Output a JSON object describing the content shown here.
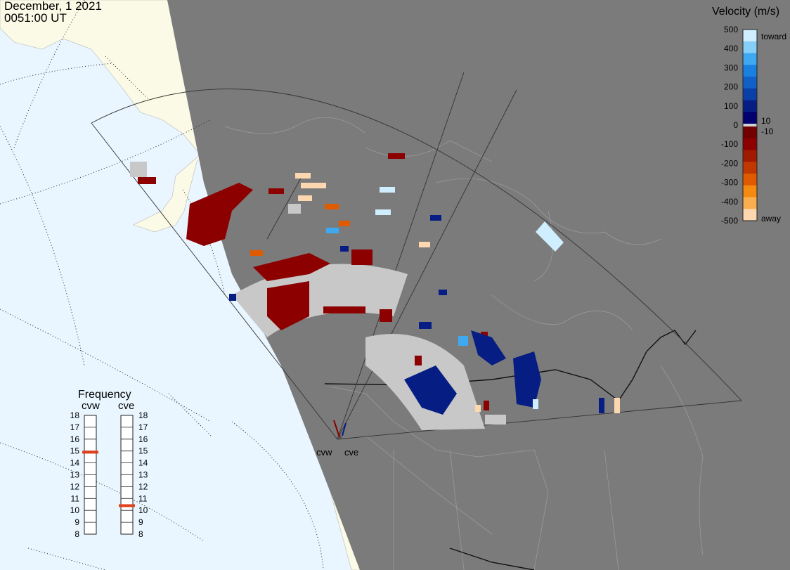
{
  "header": {
    "date": "December, 1 2021",
    "time": "0051:00 UT"
  },
  "velocity_legend": {
    "title": "Velocity (m/s)",
    "ticks": [
      "500",
      "400",
      "300",
      "200",
      "100",
      "0",
      "-100",
      "-200",
      "-300",
      "-400",
      "-500"
    ],
    "toward_label": "toward",
    "away_label": "away",
    "plus_threshold": "10",
    "minus_threshold": "-10",
    "colors_toward": [
      "#cfeeff",
      "#86cff8",
      "#3ea8f0",
      "#1a80e0",
      "#1060c8",
      "#0a3fa8",
      "#061e84",
      "#02006e"
    ],
    "colors_away": [
      "#720000",
      "#8c0000",
      "#a01a00",
      "#c03800",
      "#e05a00",
      "#f48a10",
      "#faae50",
      "#fdd7b0"
    ],
    "zero_color": "#d0d0d0"
  },
  "frequency_legend": {
    "title": "Frequency",
    "radars": [
      {
        "name": "cvw",
        "freq": 14.9
      },
      {
        "name": "cve",
        "freq": 10.4
      }
    ],
    "ticks": [
      "18",
      "17",
      "16",
      "15",
      "14",
      "13",
      "12",
      "11",
      "10",
      "9",
      "8"
    ],
    "marker_color": "#e0401a"
  },
  "radar_sites": [
    {
      "label": "cvw"
    },
    {
      "label": "cve"
    }
  ],
  "colors": {
    "ocean": "#e9f6ff",
    "land_lit": "#fbfae6",
    "night_shade": "#7b7b7b",
    "ground_scatter": "#c8c8c8"
  }
}
